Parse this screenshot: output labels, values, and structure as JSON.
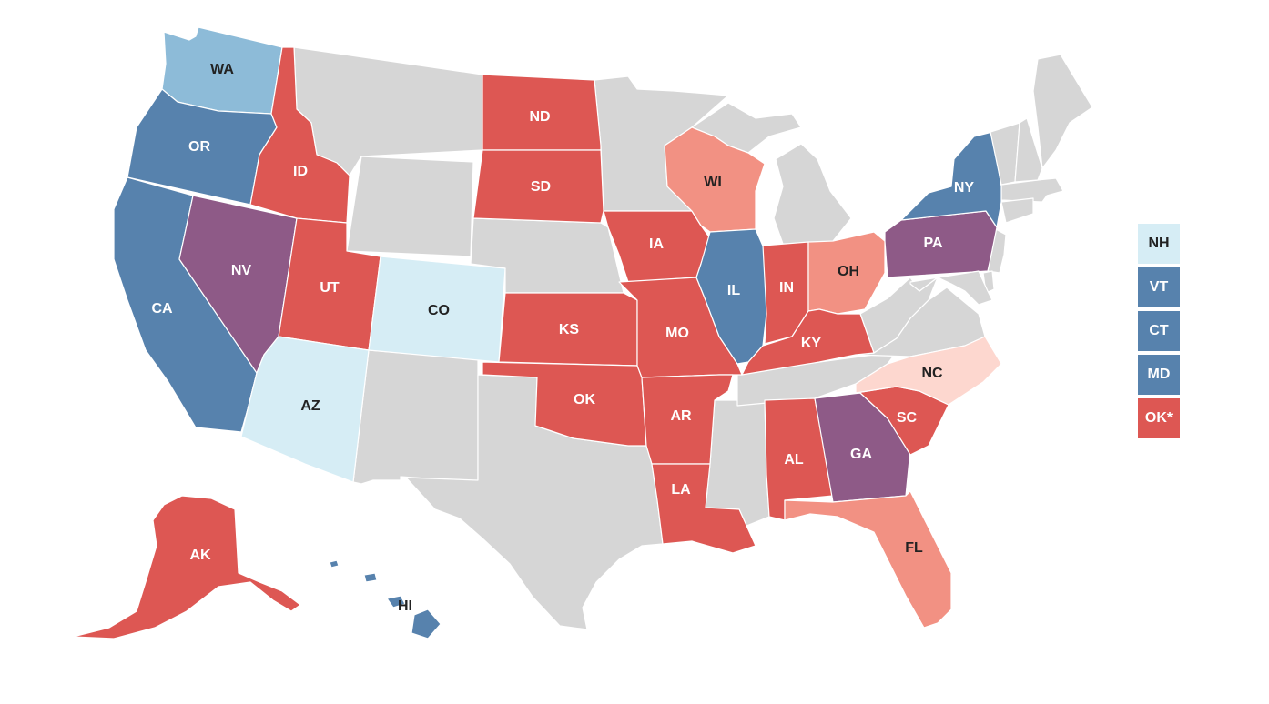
{
  "colors": {
    "gray": "#d6d6d6",
    "dark_blue": "#5782ad",
    "light_blue": "#8dbbd8",
    "pale_blue": "#d6edf5",
    "red": "#dd5753",
    "salmon": "#f29183",
    "pale_pink": "#fdd7cf",
    "purple": "#8e5a87",
    "label_light": "#ffffff",
    "label_dark": "#222222"
  },
  "states": {
    "WA": {
      "label": "WA",
      "fill": "light_blue",
      "text": "dark"
    },
    "OR": {
      "label": "OR",
      "fill": "dark_blue",
      "text": "light"
    },
    "CA": {
      "label": "CA",
      "fill": "dark_blue",
      "text": "light"
    },
    "NV": {
      "label": "NV",
      "fill": "purple",
      "text": "light"
    },
    "ID": {
      "label": "ID",
      "fill": "red",
      "text": "light"
    },
    "UT": {
      "label": "UT",
      "fill": "red",
      "text": "light"
    },
    "AZ": {
      "label": "AZ",
      "fill": "pale_blue",
      "text": "dark"
    },
    "CO": {
      "label": "CO",
      "fill": "pale_blue",
      "text": "dark"
    },
    "ND": {
      "label": "ND",
      "fill": "red",
      "text": "light"
    },
    "SD": {
      "label": "SD",
      "fill": "red",
      "text": "light"
    },
    "KS": {
      "label": "KS",
      "fill": "red",
      "text": "light"
    },
    "OK": {
      "label": "OK",
      "fill": "red",
      "text": "light"
    },
    "IA": {
      "label": "IA",
      "fill": "red",
      "text": "light"
    },
    "MO": {
      "label": "MO",
      "fill": "red",
      "text": "light"
    },
    "AR": {
      "label": "AR",
      "fill": "red",
      "text": "light"
    },
    "LA": {
      "label": "LA",
      "fill": "red",
      "text": "light"
    },
    "WI": {
      "label": "WI",
      "fill": "salmon",
      "text": "dark"
    },
    "IL": {
      "label": "IL",
      "fill": "dark_blue",
      "text": "light"
    },
    "IN": {
      "label": "IN",
      "fill": "red",
      "text": "light"
    },
    "OH": {
      "label": "OH",
      "fill": "salmon",
      "text": "dark"
    },
    "KY": {
      "label": "KY",
      "fill": "red",
      "text": "light"
    },
    "AL": {
      "label": "AL",
      "fill": "red",
      "text": "light"
    },
    "GA": {
      "label": "GA",
      "fill": "purple",
      "text": "light"
    },
    "SC": {
      "label": "SC",
      "fill": "red",
      "text": "light"
    },
    "NC": {
      "label": "NC",
      "fill": "pale_pink",
      "text": "dark"
    },
    "FL": {
      "label": "FL",
      "fill": "salmon",
      "text": "dark"
    },
    "PA": {
      "label": "PA",
      "fill": "purple",
      "text": "light"
    },
    "NY": {
      "label": "NY",
      "fill": "dark_blue",
      "text": "light"
    },
    "AK": {
      "label": "AK",
      "fill": "red",
      "text": "light"
    },
    "HI": {
      "label": "HI",
      "fill": "dark_blue",
      "text": "dark"
    }
  },
  "legend": [
    {
      "label": "NH",
      "fill": "pale_blue",
      "text": "dark"
    },
    {
      "label": "VT",
      "fill": "dark_blue",
      "text": "light"
    },
    {
      "label": "CT",
      "fill": "dark_blue",
      "text": "light"
    },
    {
      "label": "MD",
      "fill": "dark_blue",
      "text": "light"
    },
    {
      "label": "OK*",
      "fill": "red",
      "text": "light"
    }
  ]
}
